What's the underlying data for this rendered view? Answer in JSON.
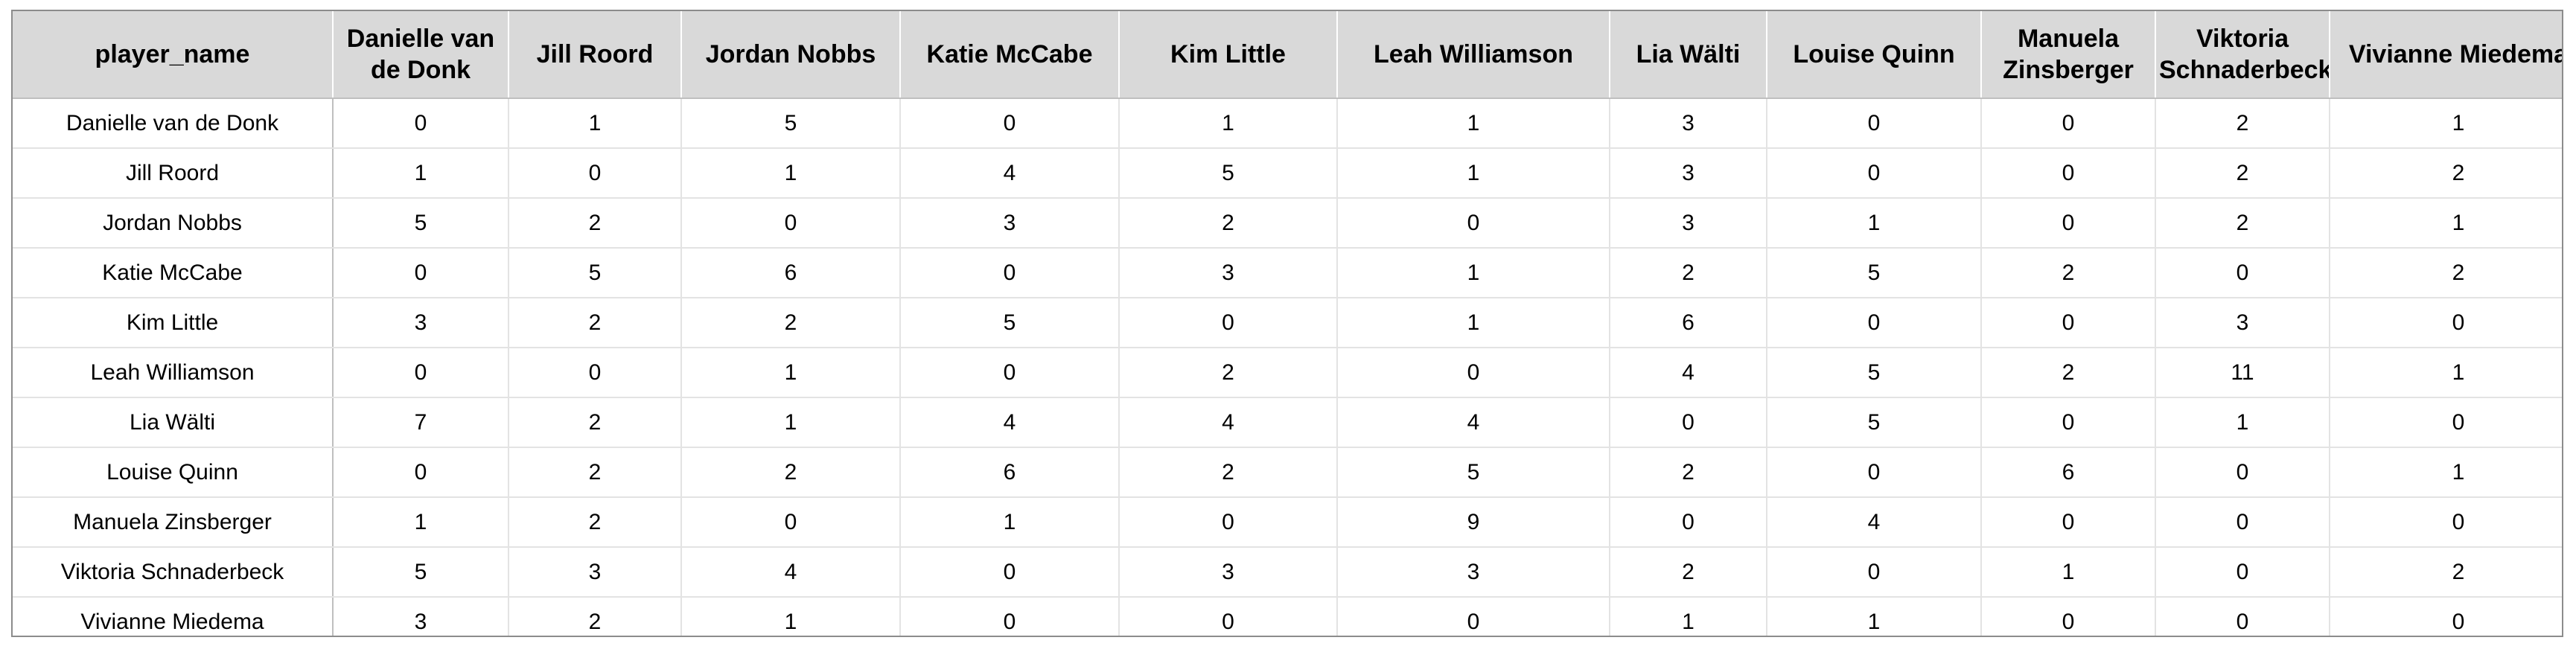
{
  "chart_data": {
    "type": "table",
    "corner_label": "player_name",
    "columns": [
      "Danielle van de Donk",
      "Jill Roord",
      "Jordan Nobbs",
      "Katie McCabe",
      "Kim Little",
      "Leah Williamson",
      "Lia Wälti",
      "Louise Quinn",
      "Manuela Zinsberger",
      "Viktoria Schnaderbeck",
      "Vivianne Miedema"
    ],
    "rows": [
      {
        "name": "Danielle van de Donk",
        "values": [
          0,
          1,
          5,
          0,
          1,
          1,
          3,
          0,
          0,
          2,
          1
        ]
      },
      {
        "name": "Jill Roord",
        "values": [
          1,
          0,
          1,
          4,
          5,
          1,
          3,
          0,
          0,
          2,
          2
        ]
      },
      {
        "name": "Jordan Nobbs",
        "values": [
          5,
          2,
          0,
          3,
          2,
          0,
          3,
          1,
          0,
          2,
          1
        ]
      },
      {
        "name": "Katie McCabe",
        "values": [
          0,
          5,
          6,
          0,
          3,
          1,
          2,
          5,
          2,
          0,
          2
        ]
      },
      {
        "name": "Kim Little",
        "values": [
          3,
          2,
          2,
          5,
          0,
          1,
          6,
          0,
          0,
          3,
          0
        ]
      },
      {
        "name": "Leah Williamson",
        "values": [
          0,
          0,
          1,
          0,
          2,
          0,
          4,
          5,
          2,
          11,
          1
        ]
      },
      {
        "name": "Lia Wälti",
        "values": [
          7,
          2,
          1,
          4,
          4,
          4,
          0,
          5,
          0,
          1,
          0
        ]
      },
      {
        "name": "Louise Quinn",
        "values": [
          0,
          2,
          2,
          6,
          2,
          5,
          2,
          0,
          6,
          0,
          1
        ]
      },
      {
        "name": "Manuela Zinsberger",
        "values": [
          1,
          2,
          0,
          1,
          0,
          9,
          0,
          4,
          0,
          0,
          0
        ]
      },
      {
        "name": "Viktoria Schnaderbeck",
        "values": [
          5,
          3,
          4,
          0,
          3,
          3,
          2,
          0,
          1,
          0,
          2
        ]
      },
      {
        "name": "Vivianne Miedema",
        "values": [
          3,
          2,
          1,
          0,
          0,
          0,
          1,
          1,
          0,
          0,
          0
        ]
      }
    ]
  },
  "colors": {
    "header_background": "#d9d9d9",
    "outer_border": "#8c8c8c",
    "grid_line": "#e3e3e3",
    "text": "#000000"
  }
}
